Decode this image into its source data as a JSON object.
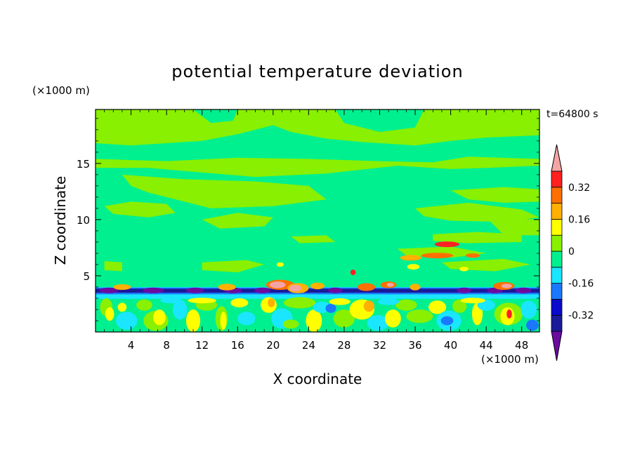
{
  "chart_data": {
    "type": "heatmap",
    "title": "potential temperature deviation",
    "xlabel": "X coordinate",
    "ylabel": "Z coordinate",
    "x_unit": "(×1000 m)",
    "y_unit": "(×1000 m)",
    "time_label": "t=64800 s",
    "xlim": [
      0,
      50
    ],
    "ylim": [
      0,
      19.8
    ],
    "x_ticks": [
      4,
      8,
      12,
      16,
      20,
      24,
      28,
      32,
      36,
      40,
      44,
      48
    ],
    "y_ticks": [
      5,
      10,
      15
    ],
    "colorbar": {
      "levels": [
        -0.4,
        -0.32,
        -0.24,
        -0.16,
        -0.08,
        0,
        0.08,
        0.16,
        0.24,
        0.32,
        0.4
      ],
      "tick_labels": [
        "-0.32",
        "-0.16",
        "0",
        "0.16",
        "0.32"
      ],
      "tick_values": [
        -0.32,
        -0.16,
        0,
        0.16,
        0.32
      ],
      "colors": [
        "#6a0aa0",
        "#1a1a9a",
        "#0a0acc",
        "#1a78ff",
        "#1ae6ff",
        "#00f090",
        "#88f000",
        "#ffff00",
        "#ffb000",
        "#ff7000",
        "#ff2020",
        "#f4a4a4"
      ],
      "extend": "both"
    },
    "grid": false
  }
}
